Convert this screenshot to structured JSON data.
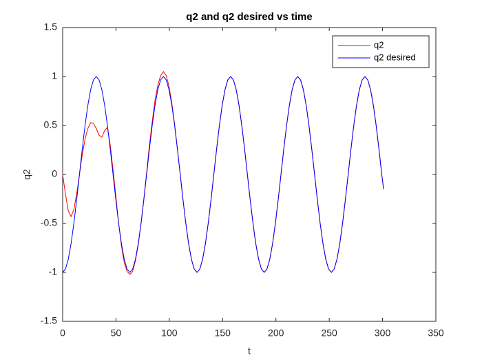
{
  "chart_data": {
    "type": "line",
    "title": "q2 and q2 desired vs time",
    "x_label": "t",
    "y_label": "q2",
    "x": [
      0,
      2.625,
      5.25,
      7.875,
      10.5,
      13.125,
      15.75,
      18.375,
      21,
      23.625,
      26.25,
      28.875,
      31.5,
      34.125,
      36.75,
      39.375,
      42,
      44.625,
      47.25,
      49.875,
      52.5,
      55.125,
      57.75,
      60.375,
      63,
      65.625,
      68.25,
      70.875,
      73.5,
      76.125,
      78.75,
      81.375,
      84,
      86.625,
      89.25,
      91.875,
      94.5,
      97.125,
      99.75,
      102.375,
      105,
      107.625,
      110.25,
      112.875,
      115.5,
      118.125,
      120.75,
      123.375,
      126,
      128.625,
      131.25,
      133.875,
      136.5,
      139.125,
      141.75,
      144.375,
      147,
      149.625,
      152.25,
      154.875,
      157.5,
      160.125,
      162.75,
      165.375,
      168,
      170.625,
      173.25,
      175.875,
      178.5,
      181.125,
      183.75,
      186.375,
      189,
      191.625,
      194.25,
      196.875,
      199.5,
      202.125,
      204.75,
      207.375,
      210,
      212.625,
      215.25,
      217.875,
      220.5,
      223.125,
      225.75,
      228.375,
      231,
      233.625,
      236.25,
      238.875,
      241.5,
      244.125,
      246.75,
      249.375,
      252,
      254.625,
      257.25,
      259.875,
      262.5,
      265.125,
      267.75,
      270.375,
      273,
      275.625,
      278.25,
      280.875,
      283.5,
      286.125,
      288.75,
      291.375,
      294,
      296.625,
      299.25,
      301
    ],
    "series": [
      {
        "name": "q2",
        "color": "#ff0000",
        "values": [
          0,
          -0.2,
          -0.37,
          -0.43,
          -0.36,
          -0.2,
          0,
          0.2,
          0.36,
          0.47,
          0.53,
          0.52,
          0.47,
          0.4,
          0.38,
          0.45,
          0.48,
          0.3,
          0.05,
          -0.22,
          -0.5,
          -0.73,
          -0.9,
          -0.99,
          -1.02,
          -0.99,
          -0.88,
          -0.72,
          -0.5,
          -0.25,
          0.02,
          0.3,
          0.54,
          0.76,
          0.91,
          1.01,
          1.05,
          1.01,
          0.9,
          0.73,
          0.51,
          0.26,
          0,
          -0.26,
          -0.5,
          -0.707,
          -0.866,
          -0.966,
          -1,
          -0.966,
          -0.866,
          -0.707,
          -0.5,
          -0.259,
          0,
          0.259,
          0.5,
          0.707,
          0.866,
          0.966,
          1,
          0.966,
          0.866,
          0.707,
          0.5,
          0.259,
          0,
          -0.259,
          -0.5,
          -0.707,
          -0.866,
          -0.966,
          -1,
          -0.966,
          -0.866,
          -0.707,
          -0.5,
          -0.259,
          0,
          0.259,
          0.5,
          0.707,
          0.866,
          0.966,
          1,
          0.966,
          0.866,
          0.707,
          0.5,
          0.259,
          0,
          -0.259,
          -0.5,
          -0.707,
          -0.866,
          -0.966,
          -1,
          -0.966,
          -0.866,
          -0.707,
          -0.5,
          -0.259,
          0,
          0.259,
          0.5,
          0.707,
          0.866,
          0.966,
          1,
          0.966,
          0.866,
          0.707,
          0.5,
          0.259,
          0,
          -0.15
        ]
      },
      {
        "name": "q2 desired",
        "color": "#0000ff",
        "values": [
          -1,
          -0.966,
          -0.866,
          -0.707,
          -0.5,
          -0.259,
          0,
          0.259,
          0.5,
          0.707,
          0.866,
          0.966,
          1,
          0.966,
          0.866,
          0.707,
          0.5,
          0.259,
          0,
          -0.259,
          -0.5,
          -0.707,
          -0.866,
          -0.966,
          -1,
          -0.966,
          -0.866,
          -0.707,
          -0.5,
          -0.259,
          0,
          0.259,
          0.5,
          0.707,
          0.866,
          0.966,
          1,
          0.966,
          0.866,
          0.707,
          0.5,
          0.259,
          0,
          -0.259,
          -0.5,
          -0.707,
          -0.866,
          -0.966,
          -1,
          -0.966,
          -0.866,
          -0.707,
          -0.5,
          -0.259,
          0,
          0.259,
          0.5,
          0.707,
          0.866,
          0.966,
          1,
          0.966,
          0.866,
          0.707,
          0.5,
          0.259,
          0,
          -0.259,
          -0.5,
          -0.707,
          -0.866,
          -0.966,
          -1,
          -0.966,
          -0.866,
          -0.707,
          -0.5,
          -0.259,
          0,
          0.259,
          0.5,
          0.707,
          0.866,
          0.966,
          1,
          0.966,
          0.866,
          0.707,
          0.5,
          0.259,
          0,
          -0.259,
          -0.5,
          -0.707,
          -0.866,
          -0.966,
          -1,
          -0.966,
          -0.866,
          -0.707,
          -0.5,
          -0.259,
          0,
          0.259,
          0.5,
          0.707,
          0.866,
          0.966,
          1,
          0.966,
          0.866,
          0.707,
          0.5,
          0.259,
          0,
          -0.15
        ]
      }
    ],
    "xlim": [
      0,
      350
    ],
    "xticks": [
      0,
      50,
      100,
      150,
      200,
      250,
      300,
      350
    ],
    "ylim": [
      -1.5,
      1.5
    ],
    "yticks": [
      -1.5,
      -1,
      -0.5,
      0,
      0.5,
      1,
      1.5
    ],
    "grid": false,
    "legend": "northeast"
  }
}
